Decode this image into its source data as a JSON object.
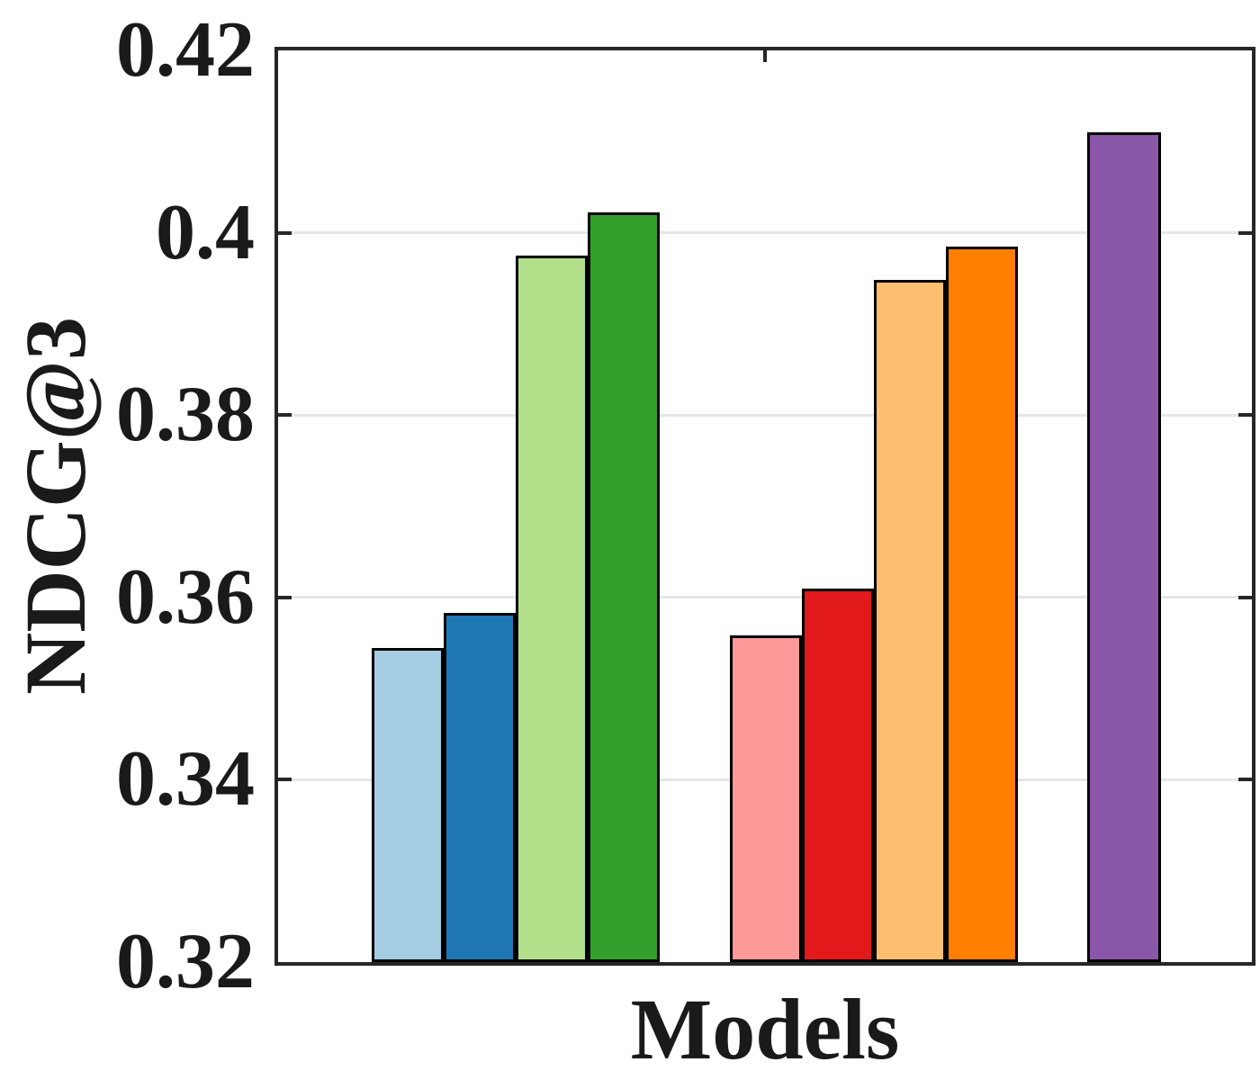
{
  "chart_data": {
    "type": "bar",
    "title": "",
    "xlabel": "Models",
    "ylabel": "NDCG@3",
    "ylim": [
      0.32,
      0.42
    ],
    "yticks": [
      {
        "value": 0.42,
        "label": "0.42"
      },
      {
        "value": 0.4,
        "label": "0.4"
      },
      {
        "value": 0.38,
        "label": "0.38"
      },
      {
        "value": 0.36,
        "label": "0.36"
      },
      {
        "value": 0.34,
        "label": "0.34"
      },
      {
        "value": 0.32,
        "label": "0.32"
      }
    ],
    "xtick_labels": [],
    "grid": "horizontal",
    "legend_position": "none",
    "groups": [
      {
        "bars": [
          {
            "color": "#a6cee3",
            "value": 0.3545
          },
          {
            "color": "#1f78b4",
            "value": 0.3583
          },
          {
            "color": "#b2df8a",
            "value": 0.3975
          },
          {
            "color": "#33a02c",
            "value": 0.4022
          }
        ]
      },
      {
        "bars": [
          {
            "color": "#fb9a99",
            "value": 0.3558
          },
          {
            "color": "#e31a1c",
            "value": 0.361
          },
          {
            "color": "#fdbf6f",
            "value": 0.3948
          },
          {
            "color": "#ff7f00",
            "value": 0.3985
          }
        ]
      },
      {
        "bars": [
          {
            "color": "#8a57a8",
            "value": 0.411
          }
        ]
      }
    ],
    "axis_color": "#262626",
    "grid_color": "#e6e6e6",
    "bar_edge_color": "#000000"
  }
}
